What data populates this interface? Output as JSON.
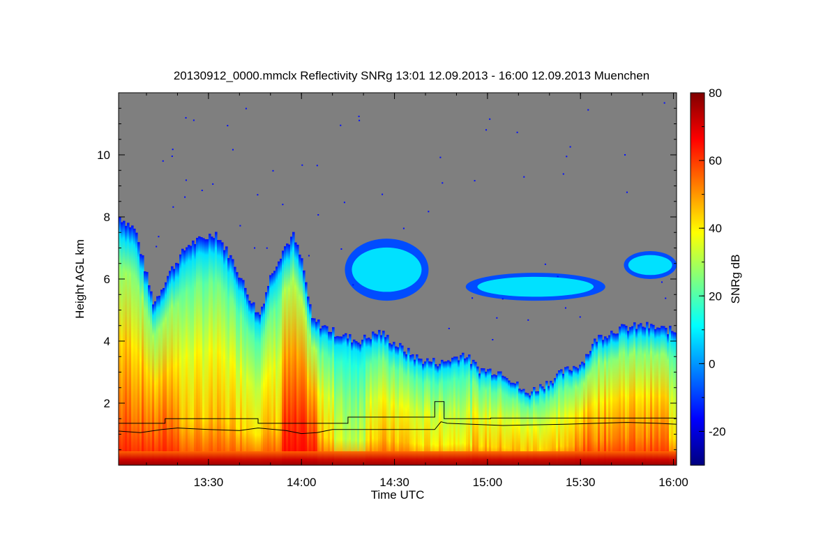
{
  "chart_data": {
    "type": "heatmap",
    "title": "20130912_0000.mmclx Reflectivity SNRg   13:01 12.09.2013 - 16:00 12.09.2013 Muenchen",
    "xlabel": "Time UTC",
    "ylabel": "Height AGL km",
    "x_range_minutes": [
      781,
      961
    ],
    "x_ticks": [
      {
        "value": 810,
        "label": "13:30"
      },
      {
        "value": 840,
        "label": "14:00"
      },
      {
        "value": 870,
        "label": "14:30"
      },
      {
        "value": 900,
        "label": "15:00"
      },
      {
        "value": 930,
        "label": "15:30"
      },
      {
        "value": 960,
        "label": "16:00"
      }
    ],
    "y_range": [
      0,
      12
    ],
    "y_ticks": [
      {
        "value": 2,
        "label": "2"
      },
      {
        "value": 4,
        "label": "4"
      },
      {
        "value": 6,
        "label": "6"
      },
      {
        "value": 8,
        "label": "8"
      },
      {
        "value": 10,
        "label": "10"
      }
    ],
    "colorbar": {
      "label": "SNRg dB",
      "range": [
        -30,
        80
      ],
      "ticks": [
        {
          "value": -20,
          "label": "-20"
        },
        {
          "value": 0,
          "label": "0"
        },
        {
          "value": 20,
          "label": "20"
        },
        {
          "value": 40,
          "label": "40"
        },
        {
          "value": 60,
          "label": "60"
        },
        {
          "value": 80,
          "label": "80"
        }
      ],
      "colormap": [
        "#00007f",
        "#0000ff",
        "#007fff",
        "#00ffff",
        "#7fff7f",
        "#ffff00",
        "#ff7f00",
        "#ff0000",
        "#7f0000"
      ]
    },
    "background_color": "#7f7f7f",
    "echo_top_profile": [
      {
        "t": 781,
        "h": 8.0
      },
      {
        "t": 786,
        "h": 7.6
      },
      {
        "t": 792,
        "h": 5.2
      },
      {
        "t": 797,
        "h": 6.2
      },
      {
        "t": 803,
        "h": 7.1
      },
      {
        "t": 808,
        "h": 7.3
      },
      {
        "t": 812,
        "h": 7.5
      },
      {
        "t": 818,
        "h": 6.5
      },
      {
        "t": 822,
        "h": 5.6
      },
      {
        "t": 826,
        "h": 4.8
      },
      {
        "t": 830,
        "h": 6.2
      },
      {
        "t": 834,
        "h": 7.0
      },
      {
        "t": 837,
        "h": 7.4
      },
      {
        "t": 840,
        "h": 6.5
      },
      {
        "t": 843,
        "h": 4.7
      },
      {
        "t": 850,
        "h": 4.3
      },
      {
        "t": 858,
        "h": 4.0
      },
      {
        "t": 865,
        "h": 4.3
      },
      {
        "t": 870,
        "h": 3.9
      },
      {
        "t": 878,
        "h": 3.4
      },
      {
        "t": 885,
        "h": 3.3
      },
      {
        "t": 892,
        "h": 3.6
      },
      {
        "t": 897,
        "h": 3.1
      },
      {
        "t": 905,
        "h": 3.0
      },
      {
        "t": 912,
        "h": 2.3
      },
      {
        "t": 918,
        "h": 2.6
      },
      {
        "t": 924,
        "h": 3.0
      },
      {
        "t": 930,
        "h": 3.3
      },
      {
        "t": 935,
        "h": 4.1
      },
      {
        "t": 942,
        "h": 4.4
      },
      {
        "t": 950,
        "h": 4.5
      },
      {
        "t": 961,
        "h": 4.3
      }
    ],
    "upper_cloud_layers": [
      {
        "t0": 854,
        "t1": 881,
        "h0": 5.3,
        "h1": 7.3
      },
      {
        "t0": 893,
        "t1": 938,
        "h0": 5.3,
        "h1": 6.2
      },
      {
        "t0": 944,
        "t1": 961,
        "h0": 6.0,
        "h1": 6.9
      }
    ],
    "series": [
      {
        "x": [
          781,
          796,
          796,
          826,
          826,
          855,
          855,
          883,
          883,
          886,
          886,
          901,
          901,
          961
        ],
        "y": [
          1.35,
          1.35,
          1.5,
          1.5,
          1.35,
          1.35,
          1.55,
          1.55,
          2.05,
          2.05,
          1.5,
          1.5,
          1.52,
          1.52
        ]
      },
      {
        "x": [
          781,
          788,
          795,
          800,
          810,
          820,
          826,
          835,
          840,
          845,
          850,
          860,
          870,
          880,
          883,
          885,
          887,
          895,
          905,
          915,
          925,
          935,
          945,
          955,
          961
        ],
        "y": [
          1.1,
          1.05,
          1.15,
          1.2,
          1.15,
          1.12,
          1.2,
          1.12,
          1.02,
          1.05,
          1.15,
          1.15,
          1.15,
          1.15,
          1.15,
          1.4,
          1.35,
          1.32,
          1.28,
          1.3,
          1.32,
          1.35,
          1.38,
          1.35,
          1.32
        ]
      }
    ]
  }
}
